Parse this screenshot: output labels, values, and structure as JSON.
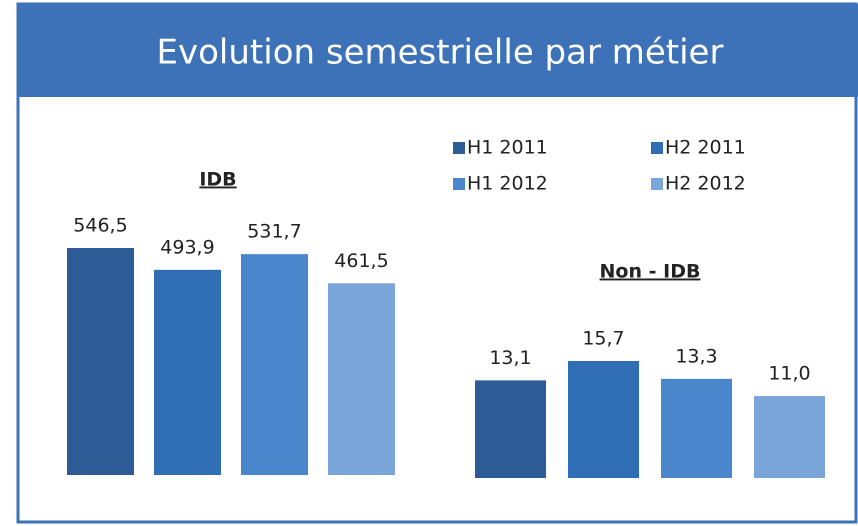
{
  "title": "Evolution semestrielle par métier",
  "chart_data": [
    {
      "type": "bar",
      "title": "IDB",
      "series": [
        {
          "name": "H1 2011",
          "color": "#2c5b96",
          "values": [
            546.5
          ],
          "value_labels": [
            "546,5"
          ]
        },
        {
          "name": "H2 2011",
          "color": "#2f6db5",
          "values": [
            493.9
          ],
          "value_labels": [
            "493,9"
          ]
        },
        {
          "name": "H1 2012",
          "color": "#4a86cc",
          "values": [
            531.7
          ],
          "value_labels": [
            "531,7"
          ]
        },
        {
          "name": "H2 2012",
          "color": "#79a5d9",
          "values": [
            461.5
          ],
          "value_labels": [
            "461,5"
          ]
        }
      ]
    },
    {
      "type": "bar",
      "title": "Non - IDB",
      "series": [
        {
          "color": "#2c5b96",
          "values": [
            13.1
          ],
          "value_labels": [
            "13,1"
          ]
        },
        {
          "color": "#2f6db5",
          "values": [
            15.7
          ],
          "value_labels": [
            "15,7"
          ]
        },
        {
          "color": "#4a86cc",
          "values": [
            13.3
          ],
          "value_labels": [
            "13,3"
          ]
        },
        {
          "color": "#79a5d9",
          "values": [
            11.0
          ],
          "value_labels": [
            "11,0"
          ]
        }
      ]
    }
  ]
}
